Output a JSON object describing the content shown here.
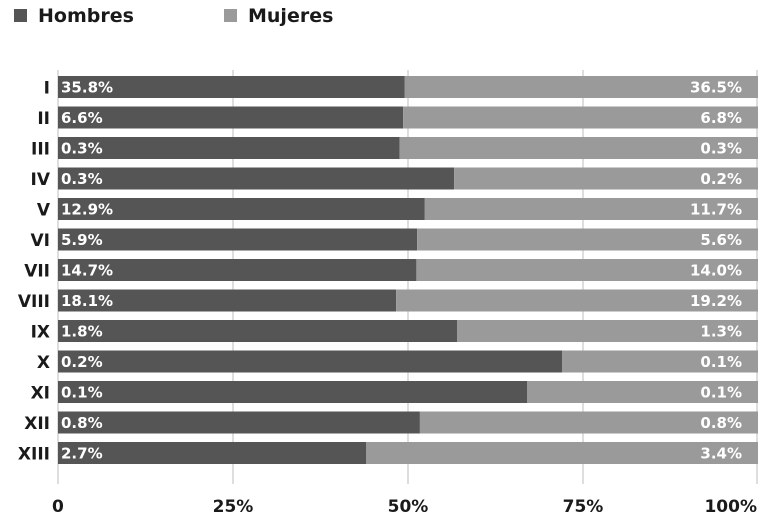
{
  "chart_data": {
    "type": "bar",
    "orientation": "horizontal",
    "stacked": "percent",
    "categories": [
      "I",
      "II",
      "III",
      "IV",
      "V",
      "VI",
      "VII",
      "VIII",
      "IX",
      "X",
      "XI",
      "XII",
      "XIII"
    ],
    "series": [
      {
        "name": "Hombres",
        "color": "#555555",
        "share": [
          49.5,
          49.3,
          48.8,
          56.6,
          52.4,
          51.3,
          51.2,
          48.3,
          57.0,
          72.0,
          67.0,
          51.7,
          44.0
        ],
        "labels": [
          "35.8%",
          "6.6%",
          "0.3%",
          "0.3%",
          "12.9%",
          "5.9%",
          "14.7%",
          "18.1%",
          "1.8%",
          "0.2%",
          "0.1%",
          "0.8%",
          "2.7%"
        ]
      },
      {
        "name": "Mujeres",
        "color": "#9a9a9a",
        "share": [
          50.5,
          50.7,
          51.2,
          43.4,
          47.6,
          48.7,
          48.8,
          51.7,
          43.0,
          28.0,
          33.0,
          48.3,
          56.0
        ],
        "labels": [
          "36.5%",
          "6.8%",
          "0.3%",
          "0.2%",
          "11.7%",
          "5.6%",
          "14.0%",
          "19.2%",
          "1.3%",
          "0.1%",
          "0.1%",
          "0.8%",
          "3.4%"
        ]
      }
    ],
    "xaxis": {
      "ticks": [
        0,
        25,
        50,
        75,
        100
      ],
      "tick_labels": [
        "0",
        "25%",
        "50%",
        "75%",
        "100%"
      ],
      "range": [
        0,
        100
      ]
    },
    "grid": true,
    "legend": "top-left"
  }
}
